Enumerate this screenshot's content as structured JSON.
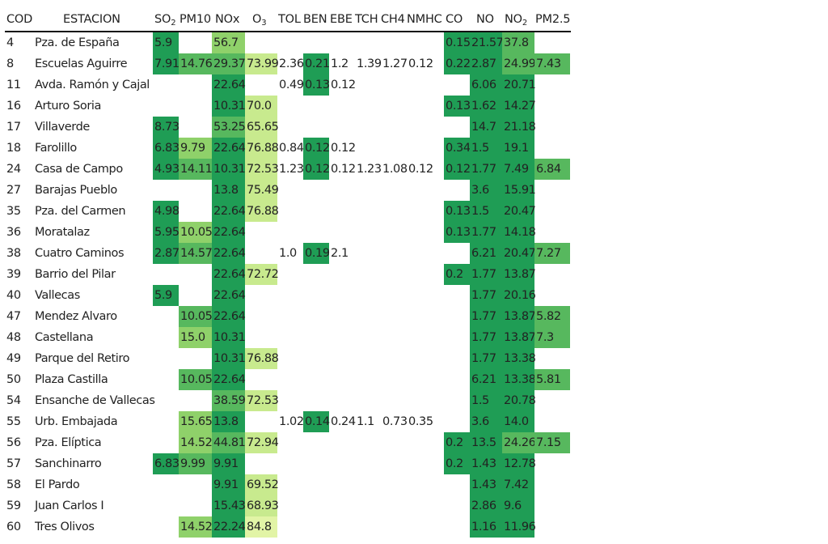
{
  "chart_data": {
    "type": "heatmap",
    "columns": [
      "COD",
      "ESTACION",
      "SO₂",
      "PM10",
      "NOx",
      "O₃",
      "TOL",
      "BEN",
      "EBE",
      "TCH",
      "CH4",
      "NMHC",
      "CO",
      "NO",
      "NO₂",
      "PM2.5"
    ],
    "header_parts": [
      {
        "base": "COD",
        "sub": ""
      },
      {
        "base": "ESTACION",
        "sub": ""
      },
      {
        "base": "SO",
        "sub": "2"
      },
      {
        "base": "PM10",
        "sub": ""
      },
      {
        "base": "NOx",
        "sub": ""
      },
      {
        "base": "O",
        "sub": "3"
      },
      {
        "base": "TOL",
        "sub": ""
      },
      {
        "base": "BEN",
        "sub": ""
      },
      {
        "base": "EBE",
        "sub": ""
      },
      {
        "base": "TCH",
        "sub": ""
      },
      {
        "base": "CH4",
        "sub": ""
      },
      {
        "base": "NMHC",
        "sub": ""
      },
      {
        "base": "CO",
        "sub": ""
      },
      {
        "base": "NO",
        "sub": ""
      },
      {
        "base": "NO",
        "sub": "2"
      },
      {
        "base": "PM2.5",
        "sub": ""
      }
    ],
    "pollutant_columns": [
      "SO2",
      "PM10",
      "NOx",
      "O3",
      "TOL",
      "BEN",
      "EBE",
      "TCH",
      "CH4",
      "NMHC",
      "CO",
      "NO",
      "NO2",
      "PM2.5"
    ],
    "rows": [
      {
        "cod": "4",
        "estacion": "Pza. de España",
        "values": [
          "5.9",
          "",
          "56.7",
          "",
          "",
          "",
          "",
          "",
          "",
          "",
          "0.15",
          "21.57",
          "37.8",
          ""
        ]
      },
      {
        "cod": "8",
        "estacion": "Escuelas Aguirre",
        "values": [
          "7.91",
          "14.76",
          "29.37",
          "73.99",
          "2.36",
          "0.21",
          "1.2",
          "1.39",
          "1.27",
          "0.12",
          "0.22",
          "2.87",
          "24.99",
          "7.43"
        ]
      },
      {
        "cod": "11",
        "estacion": "Avda. Ramón y Cajal",
        "values": [
          "",
          "",
          "22.64",
          "",
          "0.49",
          "0.13",
          "0.12",
          "",
          "",
          "",
          "",
          "6.06",
          "20.71",
          ""
        ]
      },
      {
        "cod": "16",
        "estacion": "Arturo Soria",
        "values": [
          "",
          "",
          "10.31",
          "70.0",
          "",
          "",
          "",
          "",
          "",
          "",
          "0.13",
          "1.62",
          "14.27",
          ""
        ]
      },
      {
        "cod": "17",
        "estacion": "Villaverde",
        "values": [
          "8.73",
          "",
          "53.25",
          "65.65",
          "",
          "",
          "",
          "",
          "",
          "",
          "",
          "14.7",
          "21.18",
          ""
        ]
      },
      {
        "cod": "18",
        "estacion": "Farolillo",
        "values": [
          "6.83",
          "9.79",
          "22.64",
          "76.88",
          "0.84",
          "0.12",
          "0.12",
          "",
          "",
          "",
          "0.34",
          "1.5",
          "19.1",
          ""
        ]
      },
      {
        "cod": "24",
        "estacion": "Casa de Campo",
        "values": [
          "4.93",
          "14.11",
          "10.31",
          "72.53",
          "1.23",
          "0.12",
          "0.12",
          "1.23",
          "1.08",
          "0.12",
          "0.12",
          "1.77",
          "7.49",
          "6.84"
        ]
      },
      {
        "cod": "27",
        "estacion": "Barajas Pueblo",
        "values": [
          "",
          "",
          "13.8",
          "75.49",
          "",
          "",
          "",
          "",
          "",
          "",
          "",
          "3.6",
          "15.91",
          ""
        ]
      },
      {
        "cod": "35",
        "estacion": "Pza. del Carmen",
        "values": [
          "4.98",
          "",
          "22.64",
          "76.88",
          "",
          "",
          "",
          "",
          "",
          "",
          "0.13",
          "1.5",
          "20.47",
          ""
        ]
      },
      {
        "cod": "36",
        "estacion": "Moratalaz",
        "values": [
          "5.95",
          "10.05",
          "22.64",
          "",
          "",
          "",
          "",
          "",
          "",
          "",
          "0.13",
          "1.77",
          "14.18",
          ""
        ]
      },
      {
        "cod": "38",
        "estacion": "Cuatro Caminos",
        "values": [
          "2.87",
          "14.57",
          "22.64",
          "",
          "1.0",
          "0.19",
          "2.1",
          "",
          "",
          "",
          "",
          "6.21",
          "20.47",
          "7.27"
        ]
      },
      {
        "cod": "39",
        "estacion": "Barrio del Pilar",
        "values": [
          "",
          "",
          "22.64",
          "72.72",
          "",
          "",
          "",
          "",
          "",
          "",
          "0.2",
          "1.77",
          "13.87",
          ""
        ]
      },
      {
        "cod": "40",
        "estacion": "Vallecas",
        "values": [
          "5.9",
          "",
          "22.64",
          "",
          "",
          "",
          "",
          "",
          "",
          "",
          "",
          "1.77",
          "20.16",
          ""
        ]
      },
      {
        "cod": "47",
        "estacion": "Mendez Alvaro",
        "values": [
          "",
          "10.05",
          "22.64",
          "",
          "",
          "",
          "",
          "",
          "",
          "",
          "",
          "1.77",
          "13.87",
          "5.82"
        ]
      },
      {
        "cod": "48",
        "estacion": "Castellana",
        "values": [
          "",
          "15.0",
          "10.31",
          "",
          "",
          "",
          "",
          "",
          "",
          "",
          "",
          "1.77",
          "13.87",
          "7.3"
        ]
      },
      {
        "cod": "49",
        "estacion": "Parque del Retiro",
        "values": [
          "",
          "",
          "10.31",
          "76.88",
          "",
          "",
          "",
          "",
          "",
          "",
          "",
          "1.77",
          "13.38",
          ""
        ]
      },
      {
        "cod": "50",
        "estacion": "Plaza Castilla",
        "values": [
          "",
          "10.05",
          "22.64",
          "",
          "",
          "",
          "",
          "",
          "",
          "",
          "",
          "6.21",
          "13.38",
          "5.81"
        ]
      },
      {
        "cod": "54",
        "estacion": "Ensanche de Vallecas",
        "values": [
          "",
          "",
          "38.59",
          "72.53",
          "",
          "",
          "",
          "",
          "",
          "",
          "",
          "1.5",
          "20.78",
          ""
        ]
      },
      {
        "cod": "55",
        "estacion": "Urb. Embajada",
        "values": [
          "",
          "15.65",
          "13.8",
          "",
          "1.02",
          "0.14",
          "0.24",
          "1.1",
          "0.73",
          "0.35",
          "",
          "3.6",
          "14.0",
          ""
        ]
      },
      {
        "cod": "56",
        "estacion": "Pza. Elíptica",
        "values": [
          "",
          "14.52",
          "44.81",
          "72.94",
          "",
          "",
          "",
          "",
          "",
          "",
          "0.2",
          "13.5",
          "24.26",
          "7.15"
        ]
      },
      {
        "cod": "57",
        "estacion": "Sanchinarro",
        "values": [
          "6.83",
          "9.99",
          "9.91",
          "",
          "",
          "",
          "",
          "",
          "",
          "",
          "0.2",
          "1.43",
          "12.78",
          ""
        ]
      },
      {
        "cod": "58",
        "estacion": "El Pardo",
        "values": [
          "",
          "",
          "9.91",
          "69.52",
          "",
          "",
          "",
          "",
          "",
          "",
          "",
          "1.43",
          "7.42",
          ""
        ]
      },
      {
        "cod": "59",
        "estacion": "Juan Carlos I",
        "values": [
          "",
          "",
          "15.43",
          "68.93",
          "",
          "",
          "",
          "",
          "",
          "",
          "",
          "2.86",
          "9.6",
          ""
        ]
      },
      {
        "cod": "60",
        "estacion": "Tres Olivos",
        "values": [
          "",
          "14.52",
          "22.24",
          "84.8",
          "",
          "",
          "",
          "",
          "",
          "",
          "",
          "1.16",
          "11.96",
          ""
        ]
      }
    ],
    "colors": {
      "dark": "#1f9d55",
      "mid": "#57b85e",
      "light": "#8fd16a",
      "pale": "#c8ea8e",
      "palest": "#e2f4a6"
    },
    "cell_shades": {
      "SO2": "dark",
      "PM10": "light",
      "NOx": "dark",
      "O3": "pale",
      "TOL": "",
      "BEN": "dark",
      "EBE": "",
      "TCH": "",
      "CH4": "",
      "NMHC": "",
      "CO": "dark",
      "NO": "dark",
      "NO2": "dark",
      "PM2.5": "mid"
    },
    "shade_overrides": [
      {
        "row": 0,
        "col": "NOx",
        "shade": "light"
      },
      {
        "row": 1,
        "col": "NOx",
        "shade": "mid"
      },
      {
        "row": 1,
        "col": "NO2",
        "shade": "mid"
      },
      {
        "row": 4,
        "col": "NOx",
        "shade": "mid"
      },
      {
        "row": 17,
        "col": "NOx",
        "shade": "mid"
      },
      {
        "row": 19,
        "col": "NOx",
        "shade": "mid"
      },
      {
        "row": 19,
        "col": "NO2",
        "shade": "mid"
      },
      {
        "row": 19,
        "col": "NO",
        "shade": "dark"
      },
      {
        "row": 1,
        "col": "SO2",
        "shade": "dark"
      },
      {
        "row": 4,
        "col": "SO2",
        "shade": "dark"
      },
      {
        "row": 0,
        "col": "NO2",
        "shade": "mid"
      },
      {
        "row": 23,
        "col": "O3",
        "shade": "palest"
      },
      {
        "row": 1,
        "col": "PM10",
        "shade": "mid"
      },
      {
        "row": 6,
        "col": "PM10",
        "shade": "mid"
      },
      {
        "row": 10,
        "col": "PM10",
        "shade": "mid"
      },
      {
        "row": 13,
        "col": "PM10",
        "shade": "mid"
      },
      {
        "row": 16,
        "col": "PM10",
        "shade": "mid"
      },
      {
        "row": 20,
        "col": "PM10",
        "shade": "mid"
      }
    ]
  }
}
